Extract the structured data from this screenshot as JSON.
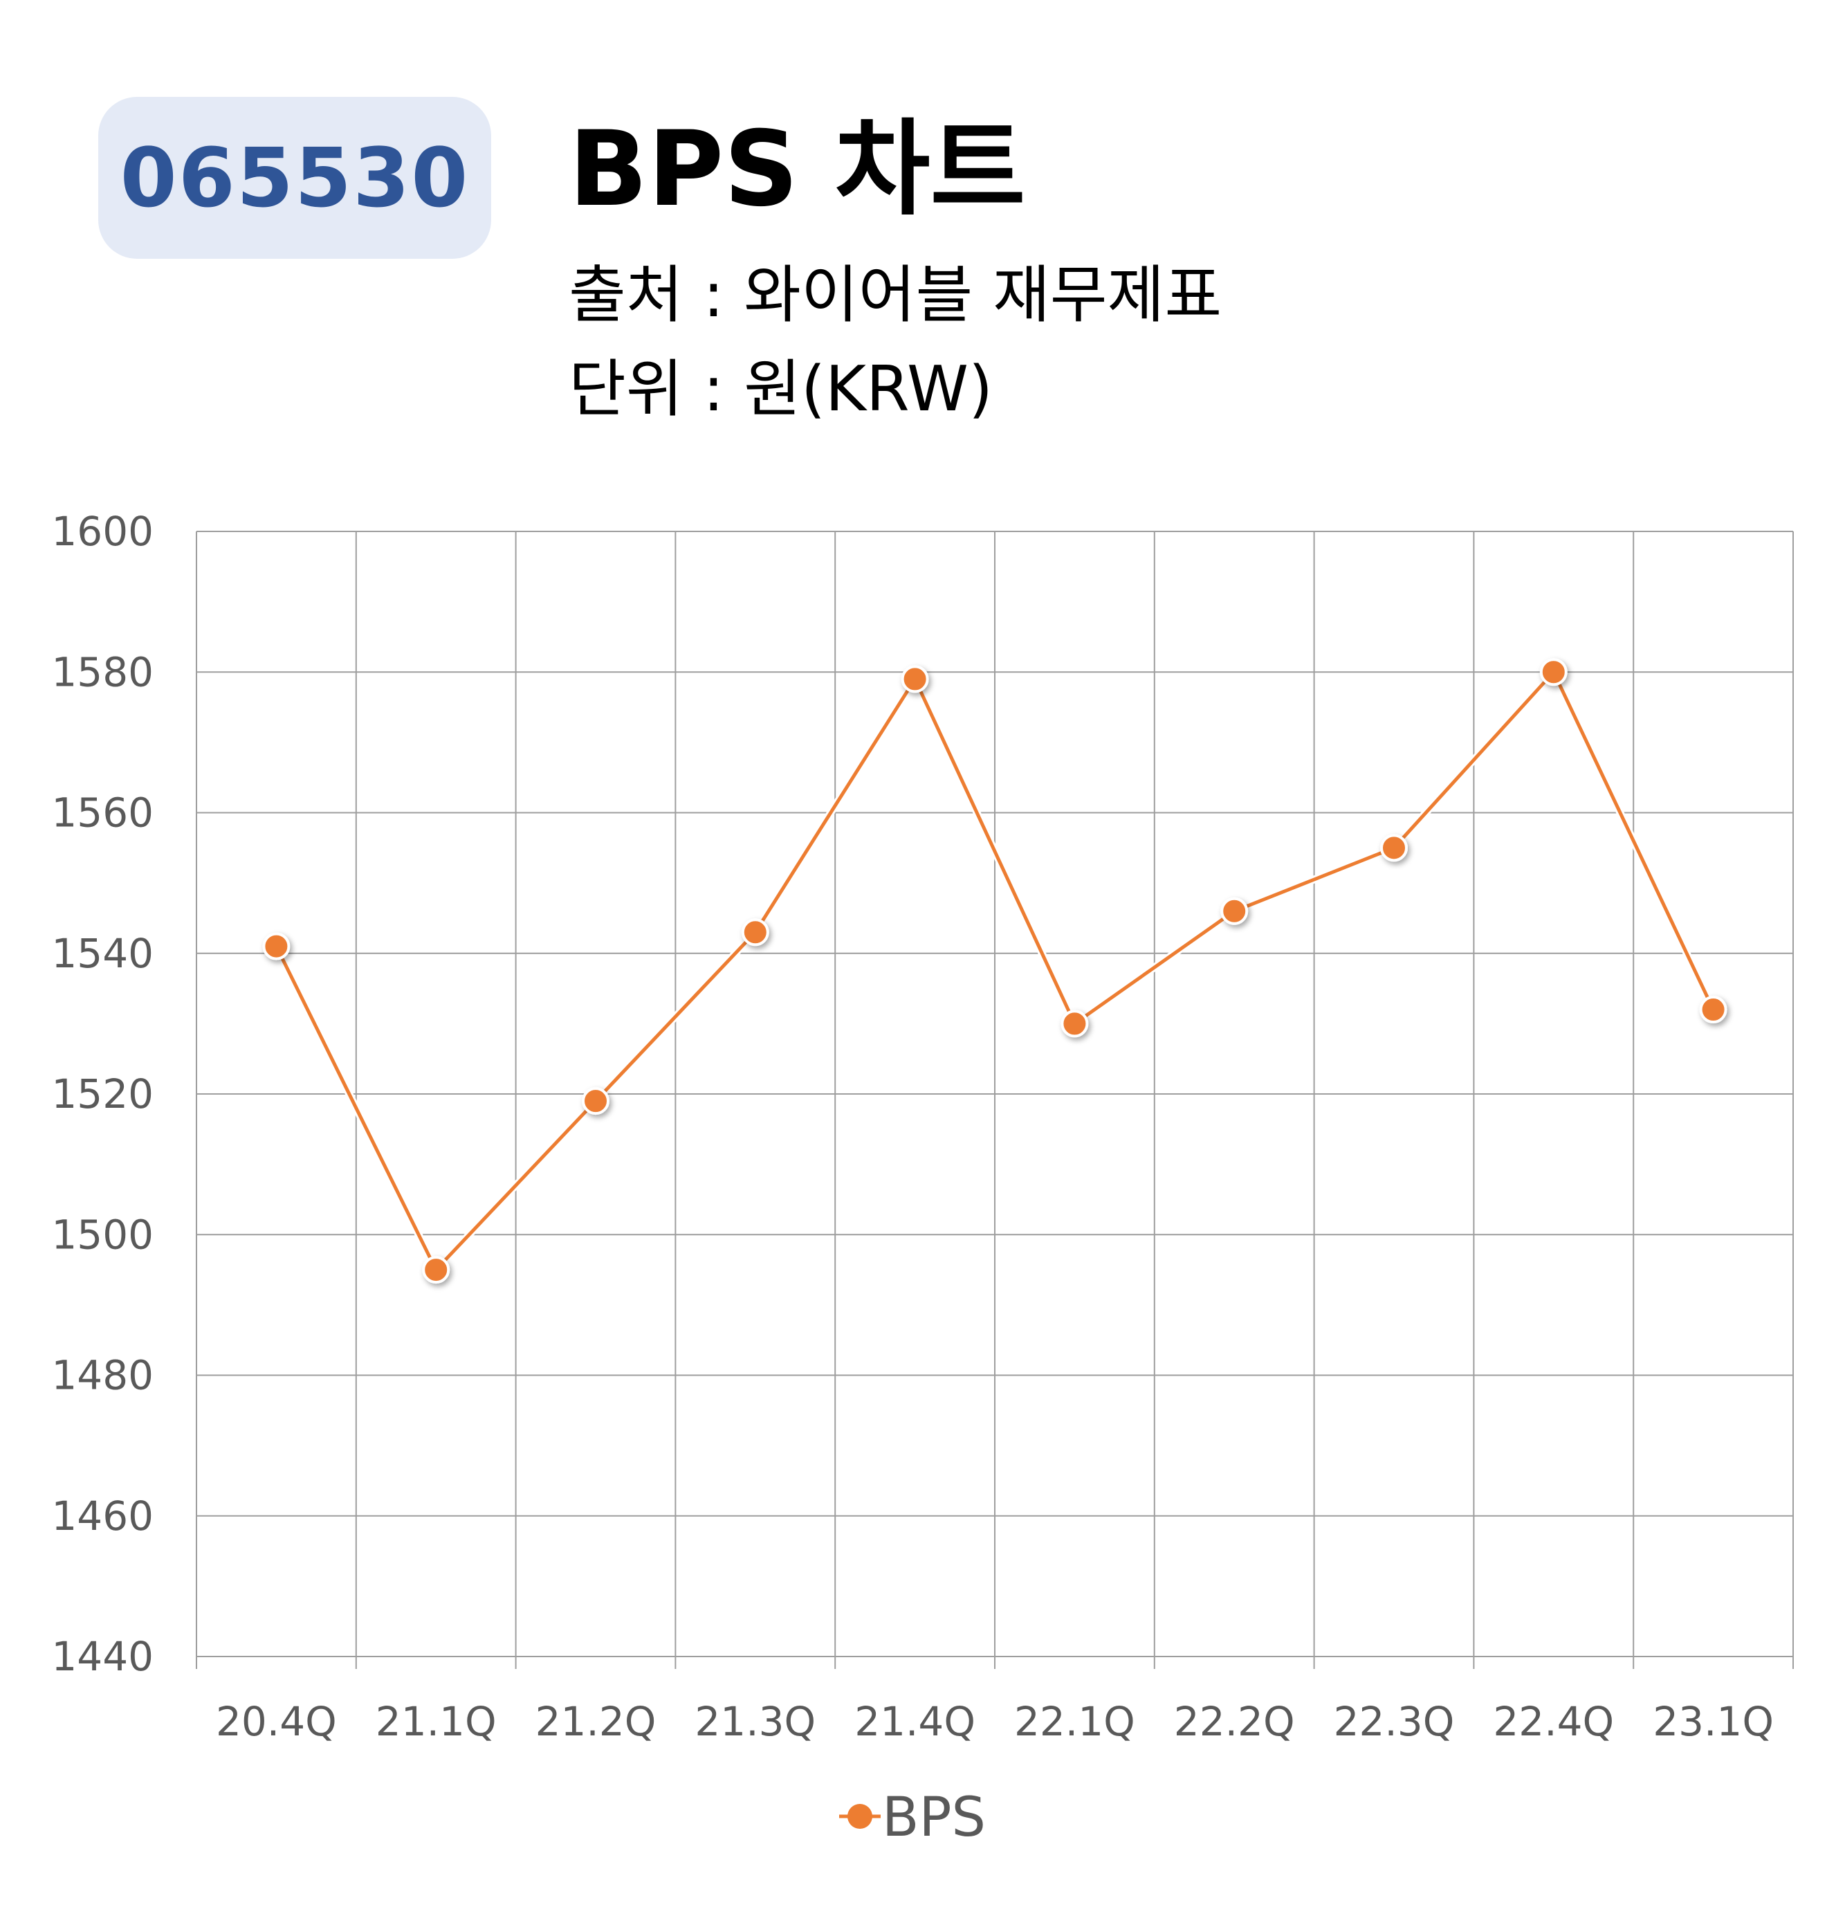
{
  "badge": {
    "code": "065530"
  },
  "header": {
    "title": "BPS 차트",
    "source": "출처 : 와이어블 재무제표",
    "unit": "단위 : 원(KRW)"
  },
  "colors": {
    "series": "#ed7d31",
    "badge_bg": "#e4eaf6",
    "badge_text": "#2f5597",
    "grid": "#9e9e9e"
  },
  "chart_data": {
    "type": "line",
    "categories": [
      "20.4Q",
      "21.1Q",
      "21.2Q",
      "21.3Q",
      "21.4Q",
      "22.1Q",
      "22.2Q",
      "22.3Q",
      "22.4Q",
      "23.1Q"
    ],
    "series": [
      {
        "name": "BPS",
        "values": [
          1541,
          1495,
          1519,
          1543,
          1579,
          1530,
          1546,
          1555,
          1580,
          1532
        ]
      }
    ],
    "ylim": [
      1440,
      1600
    ],
    "yticks": [
      1440,
      1460,
      1480,
      1500,
      1520,
      1540,
      1560,
      1580,
      1600
    ],
    "grid": true,
    "legend": "bottom"
  }
}
